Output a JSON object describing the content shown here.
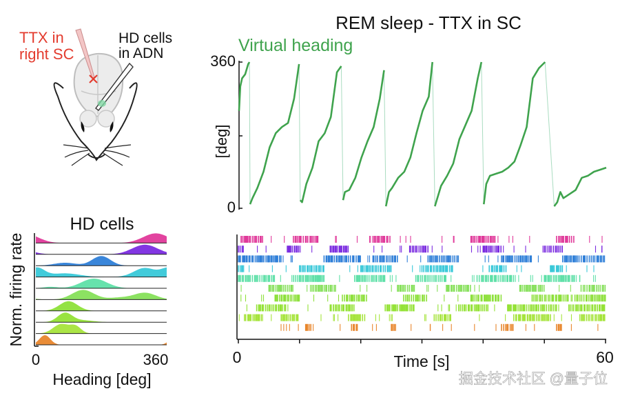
{
  "diagram": {
    "drug_label": [
      "TTX in",
      "right SC"
    ],
    "recording_label": [
      "HD cells",
      "in ADN"
    ]
  },
  "watermark": "掘金技术社区 @量子位",
  "chart_data": [
    {
      "type": "line",
      "title": "REM sleep - TTX in SC",
      "series_label": "Virtual heading",
      "xlabel": "",
      "ylabel": "[deg]",
      "xlim": [
        0,
        60
      ],
      "ylim": [
        0,
        360
      ],
      "y_ticks": [
        0,
        360
      ],
      "color": "#3fa34d",
      "x": [
        0,
        0.2,
        0.5,
        1.0,
        1.5,
        1.7,
        1.8,
        2.2,
        3.0,
        4.0,
        5.0,
        6.0,
        7.0,
        8.0,
        9.0,
        9.8,
        10.0,
        10.3,
        11.0,
        12.0,
        13.0,
        14.0,
        15.0,
        16.0,
        16.7,
        17.0,
        17.3,
        18.0,
        19.0,
        20.0,
        21.0,
        22.0,
        23.0,
        23.7,
        24.0,
        24.5,
        25.0,
        26.0,
        27.0,
        28.0,
        29.0,
        30.0,
        31.0,
        31.6,
        32.0,
        33.0,
        34.0,
        35.0,
        36.0,
        37.0,
        38.0,
        39.0,
        39.6,
        40.0,
        40.4,
        41.0,
        42.0,
        43.0,
        44.0,
        45.0,
        46.0,
        47.0,
        48.0,
        49.0,
        50.0,
        51.5,
        52.0,
        52.5,
        53.0,
        54.0,
        55.0,
        56.0,
        57.0,
        58.0,
        59.0,
        60.0
      ],
      "y": [
        240,
        300,
        320,
        330,
        355,
        360,
        10,
        25,
        50,
        90,
        150,
        185,
        200,
        210,
        270,
        355,
        20,
        15,
        60,
        100,
        165,
        185,
        225,
        335,
        350,
        20,
        40,
        45,
        75,
        125,
        165,
        200,
        270,
        340,
        5,
        40,
        50,
        75,
        90,
        125,
        185,
        240,
        275,
        360,
        5,
        55,
        80,
        110,
        170,
        205,
        240,
        320,
        360,
        10,
        60,
        80,
        85,
        90,
        100,
        115,
        155,
        200,
        320,
        345,
        360,
        5,
        15,
        40,
        25,
        35,
        45,
        75,
        80,
        90,
        95,
        100
      ]
    },
    {
      "type": "raster",
      "xlabel": "Time [s]",
      "x_ticks": [
        0,
        60
      ],
      "xlim": [
        0,
        60
      ],
      "rows": [
        {
          "cell": 1,
          "color": "#e0399a",
          "bursts": [
            [
              0.5,
              4
            ],
            [
              9,
              13
            ],
            [
              22,
              25
            ],
            [
              38,
              42
            ],
            [
              52,
              55
            ]
          ]
        },
        {
          "cell": 2,
          "color": "#7b2ce0",
          "bursts": [
            [
              0,
              1
            ],
            [
              8,
              10
            ],
            [
              15,
              18
            ],
            [
              28,
              31
            ],
            [
              40,
              43
            ],
            [
              50,
              53
            ]
          ]
        },
        {
          "cell": 3,
          "color": "#2f7fd8",
          "bursts": [
            [
              0,
              7
            ],
            [
              14,
              20
            ],
            [
              22,
              26
            ],
            [
              31,
              36
            ],
            [
              43,
              48
            ],
            [
              53,
              60
            ]
          ]
        },
        {
          "cell": 4,
          "color": "#38c8d8",
          "bursts": [
            [
              0,
              1
            ],
            [
              10,
              14
            ],
            [
              20,
              25
            ],
            [
              30,
              35
            ],
            [
              41,
              44
            ],
            [
              51,
              53
            ]
          ]
        },
        {
          "cell": 5,
          "color": "#5fe0a8",
          "bursts": [
            [
              0,
              6
            ],
            [
              9,
              14
            ],
            [
              19,
              24
            ],
            [
              29,
              34
            ],
            [
              39,
              45
            ],
            [
              50,
              55
            ]
          ]
        },
        {
          "cell": 6,
          "color": "#86e05a",
          "bursts": [
            [
              5,
              9
            ],
            [
              12,
              16
            ],
            [
              26,
              29
            ],
            [
              34,
              38
            ],
            [
              46,
              50
            ],
            [
              56,
              60
            ]
          ]
        },
        {
          "cell": 7,
          "color": "#8de03a",
          "bursts": [
            [
              6,
              10
            ],
            [
              17,
              21
            ],
            [
              27,
              31
            ],
            [
              38,
              43
            ],
            [
              48,
              54
            ],
            [
              55,
              60
            ]
          ]
        },
        {
          "cell": 8,
          "color": "#94e236",
          "bursts": [
            [
              3,
              8
            ],
            [
              15,
              19
            ],
            [
              24,
              29
            ],
            [
              36,
              41
            ],
            [
              44,
              52
            ],
            [
              54,
              60
            ]
          ]
        },
        {
          "cell": 9,
          "color": "#a6e43c",
          "bursts": [
            [
              1,
              4
            ],
            [
              7,
              10
            ],
            [
              18,
              21
            ],
            [
              32,
              35
            ],
            [
              45,
              51
            ],
            [
              56,
              60
            ]
          ]
        },
        {
          "cell": 10,
          "color": "#e8862c",
          "bursts": [
            [
              11,
              12
            ],
            [
              18.5,
              19.5
            ],
            [
              25,
              26
            ],
            [
              43,
              45
            ],
            [
              52,
              53
            ]
          ]
        }
      ]
    },
    {
      "type": "area",
      "title": "HD cells",
      "xlabel": "Heading [deg]",
      "ylabel": "Norm. firing rate",
      "x_ticks": [
        0,
        360
      ],
      "xlim": [
        0,
        360
      ],
      "series": [
        {
          "cell": 1,
          "color": "#e0399a",
          "peaks": [
            [
              330,
              35,
              1.0
            ]
          ]
        },
        {
          "cell": 2,
          "color": "#7b2ce0",
          "peaks": [
            [
              300,
              35,
              1.0
            ]
          ]
        },
        {
          "cell": 3,
          "color": "#2f7fd8",
          "peaks": [
            [
              180,
              25,
              1.0
            ],
            [
              80,
              30,
              0.3
            ]
          ]
        },
        {
          "cell": 4,
          "color": "#38c8d8",
          "peaks": [
            [
              5,
              20,
              0.9
            ],
            [
              300,
              30,
              1.0
            ],
            [
              80,
              40,
              0.4
            ]
          ]
        },
        {
          "cell": 5,
          "color": "#5fe0a8",
          "peaks": [
            [
              160,
              35,
              1.0
            ],
            [
              40,
              20,
              0.15
            ]
          ]
        },
        {
          "cell": 6,
          "color": "#86e05a",
          "peaks": [
            [
              130,
              30,
              1.0
            ],
            [
              300,
              30,
              0.7
            ],
            [
              230,
              30,
              0.2
            ]
          ]
        },
        {
          "cell": 7,
          "color": "#8de03a",
          "peaks": [
            [
              90,
              25,
              1.0
            ]
          ]
        },
        {
          "cell": 8,
          "color": "#94e236",
          "peaks": [
            [
              80,
              20,
              1.0
            ],
            [
              130,
              30,
              0.2
            ]
          ]
        },
        {
          "cell": 9,
          "color": "#a6e43c",
          "peaks": [
            [
              70,
              22,
              1.0
            ],
            [
              110,
              15,
              0.7
            ]
          ]
        },
        {
          "cell": 10,
          "color": "#e8862c",
          "peaks": [
            [
              25,
              15,
              1.0
            ]
          ]
        }
      ]
    }
  ]
}
